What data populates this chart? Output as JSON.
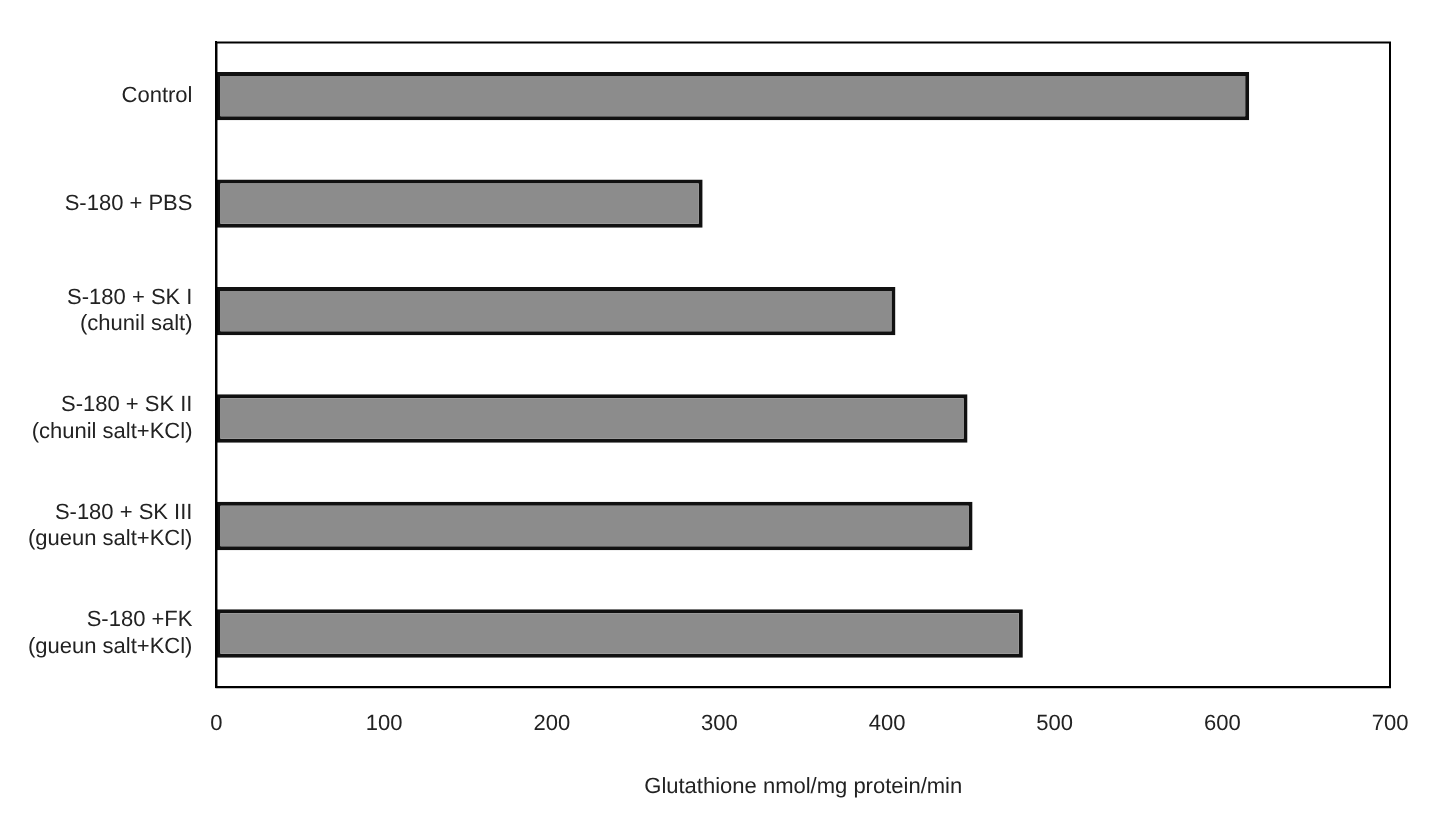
{
  "chart_data": {
    "type": "bar",
    "orientation": "horizontal",
    "xlabel": "Glutathione nmol/mg protein/min",
    "categories": [
      "Control",
      "S-180 + PBS",
      "S-180 + SK I\n(chunil salt)",
      "S-180 + SK II\n(chunil salt+KCl)",
      "S-180 + SK III\n(gueun salt+KCl)",
      "S-180 +FK\n(gueun salt+KCl)"
    ],
    "values": [
      616,
      290,
      405,
      448,
      451,
      481
    ],
    "color": "#8c8c8c",
    "xlim": [
      0,
      700
    ],
    "xticks": [
      0,
      100,
      200,
      300,
      400,
      500,
      600,
      700
    ],
    "grid": false,
    "legend": false
  }
}
